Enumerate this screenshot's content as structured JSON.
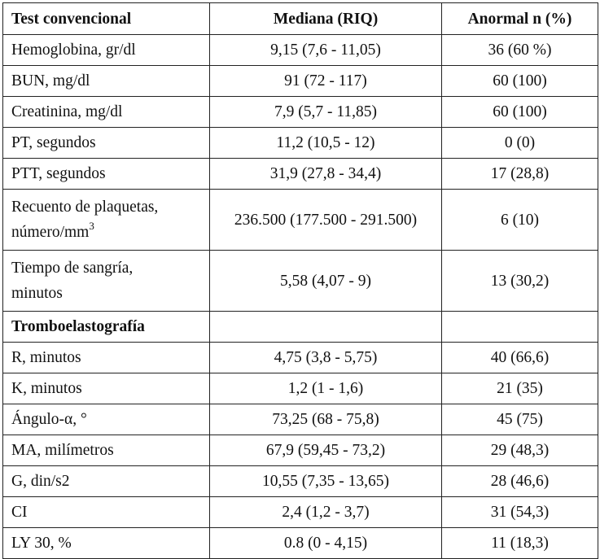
{
  "header": {
    "col1": "Test convencional",
    "col2": "Mediana (RIQ)",
    "col3": "Anormal n (%)"
  },
  "rows": [
    {
      "test": "Hemoglobina, gr/dl",
      "median": "9,15 (7,6 - 11,05)",
      "abnormal": "36 (60 %)"
    },
    {
      "test": "BUN, mg/dl",
      "median": "91 (72 - 117)",
      "abnormal": "60 (100)"
    },
    {
      "test": "Creatinina, mg/dl",
      "median": "7,9 (5,7 - 11,85)",
      "abnormal": "60 (100)"
    },
    {
      "test": "PT, segundos",
      "median": "11,2 (10,5 - 12)",
      "abnormal": "0 (0)"
    },
    {
      "test": "PTT, segundos",
      "median": "31,9 (27,8 - 34,4)",
      "abnormal": "17 (28,8)"
    },
    {
      "test_line1": "Recuento de plaquetas,",
      "test_line2": "número/mm",
      "test_sup": "3",
      "median": "236.500 (177.500 - 291.500)",
      "abnormal": "6 (10)"
    },
    {
      "test_line1": "Tiempo de sangría,",
      "test_line2": "minutos",
      "median": "5,58 (4,07 - 9)",
      "abnormal": "13 (30,2)"
    }
  ],
  "section2": {
    "title": "Tromboelastografía"
  },
  "rows2": [
    {
      "test": "R, minutos",
      "median": "4,75 (3,8 - 5,75)",
      "abnormal": "40 (66,6)"
    },
    {
      "test": "K, minutos",
      "median": "1,2 (1 - 1,6)",
      "abnormal": "21 (35)"
    },
    {
      "test": "Ángulo-α, °",
      "median": "73,25 (68 - 75,8)",
      "abnormal": "45 (75)"
    },
    {
      "test": "MA, milímetros",
      "median": "67,9 (59,45 - 73,2)",
      "abnormal": "29 (48,3)"
    },
    {
      "test": "G, din/s2",
      "median": "10,55 (7,35 - 13,65)",
      "abnormal": "28 (46,6)"
    },
    {
      "test": "CI",
      "median": "2,4 (1,2 - 3,7)",
      "abnormal": "31 (54,3)"
    },
    {
      "test": "LY 30, %",
      "median": "0.8 (0 - 4,15)",
      "abnormal": "11 (18,3)"
    }
  ]
}
